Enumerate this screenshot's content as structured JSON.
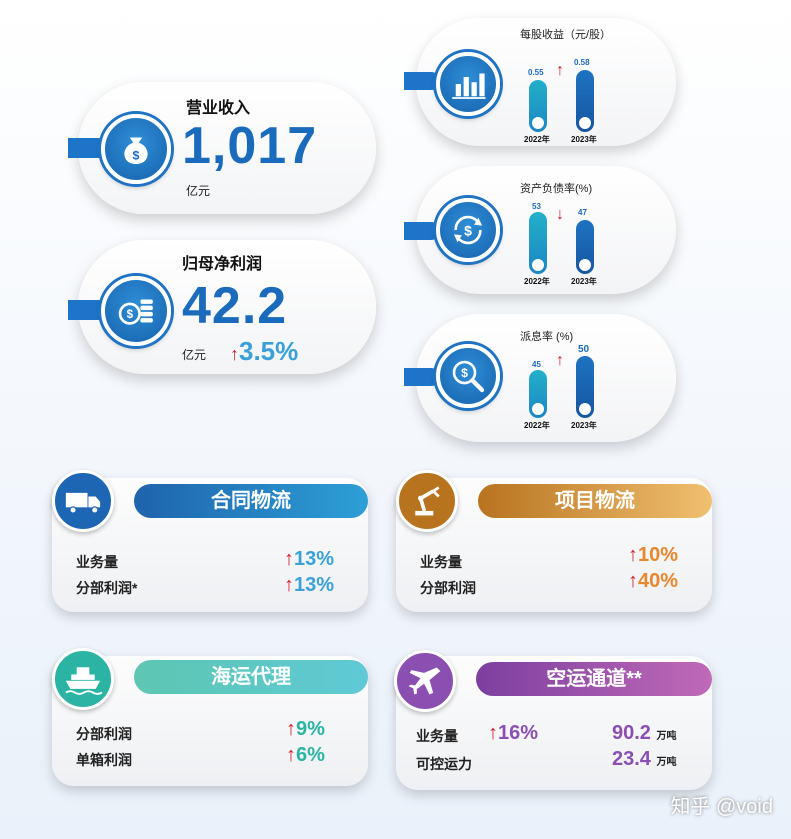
{
  "revenue": {
    "title": "营业收入",
    "value": "1,017",
    "unit": "亿元"
  },
  "net_profit": {
    "title": "归母净利润",
    "value": "42.2",
    "unit": "亿元",
    "change_arrow": "↑",
    "change": "3.5%"
  },
  "eps": {
    "title": "每股收益（元/股）",
    "y2022": "2022年",
    "y2023": "2023年",
    "v2022": "0.55",
    "v2023": "0.58",
    "arrow": "↑"
  },
  "debt": {
    "title": "资产负债率(%)",
    "y2022": "2022年",
    "y2023": "2023年",
    "v2022": "53",
    "v2023": "47",
    "arrow": "↓"
  },
  "payout": {
    "title": "派息率 (%)",
    "y2022": "2022年",
    "y2023": "2023年",
    "v2022": "45",
    "v2023": "50",
    "arrow": "↑"
  },
  "contract": {
    "title": "合同物流",
    "r1_label": "业务量",
    "r1_arrow": "↑",
    "r1_value": "13%",
    "r2_label": "分部利润*",
    "r2_arrow": "↑",
    "r2_value": "13%"
  },
  "project": {
    "title": "项目物流",
    "r1_label": "业务量",
    "r1_arrow": "↑",
    "r1_value": "10%",
    "r2_label": "分部利润",
    "r2_arrow": "↑",
    "r2_value": "40%"
  },
  "shipping": {
    "title": "海运代理",
    "r1_label": "分部利润",
    "r1_arrow": "↑",
    "r1_value": "9%",
    "r2_label": "单箱利润",
    "r2_arrow": "↑",
    "r2_value": "6%"
  },
  "air": {
    "title": "空运通道**",
    "r1_label": "业务量",
    "r1_arrow": "↑",
    "r1_pct": "16%",
    "r1_value": "90.2",
    "r1_unit": "万吨",
    "r2_label": "可控运力",
    "r2_value": "23.4",
    "r2_unit": "万吨"
  },
  "watermark": "知乎 @void",
  "colors": {
    "blue": "#1b6bbd",
    "teal": "#2bb3a3",
    "orange": "#e8872e",
    "purple": "#8a4fb0",
    "red": "#d3202a"
  }
}
